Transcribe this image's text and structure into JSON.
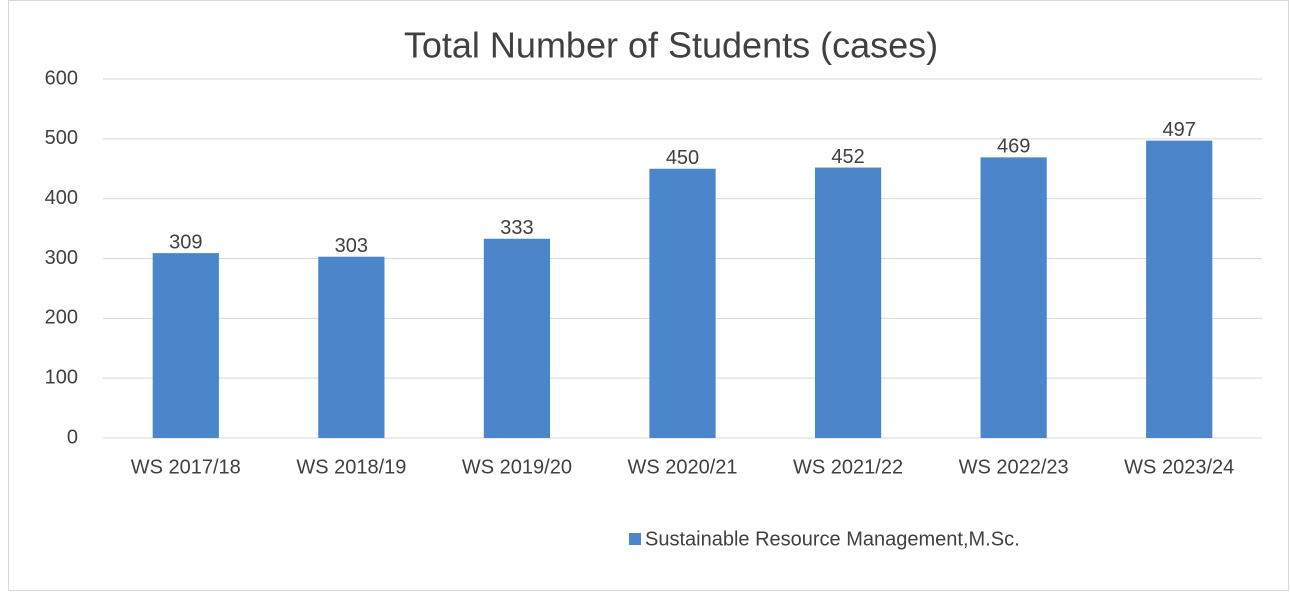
{
  "chart_data": {
    "type": "bar",
    "title": "Total Number of Students (cases)",
    "categories": [
      "WS 2017/18",
      "WS 2018/19",
      "WS 2019/20",
      "WS 2020/21",
      "WS 2021/22",
      "WS 2022/23",
      "WS 2023/24"
    ],
    "series": [
      {
        "name": "Sustainable Resource Management,M.Sc.",
        "color": "#4a86c9",
        "values": [
          309,
          303,
          333,
          450,
          452,
          469,
          497
        ]
      }
    ],
    "ylim": [
      0,
      600
    ],
    "yticks": [
      0,
      100,
      200,
      300,
      400,
      500,
      600
    ],
    "grid": true,
    "legend": "bottom"
  }
}
